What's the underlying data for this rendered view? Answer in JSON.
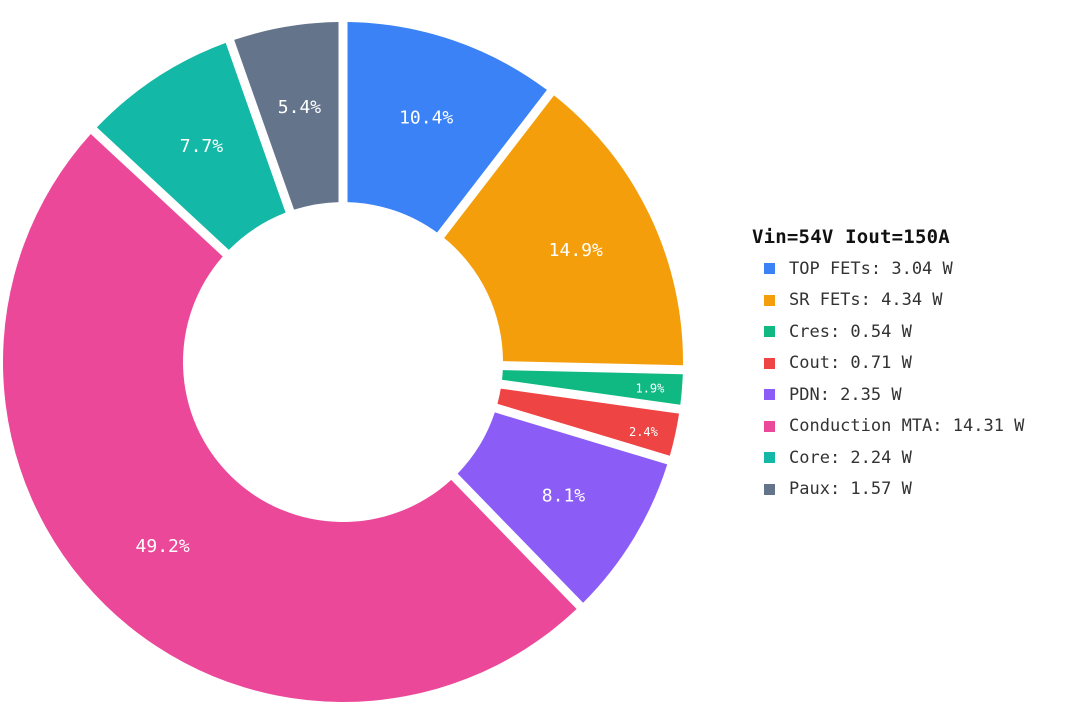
{
  "chart_data": {
    "type": "pie",
    "donut": true,
    "legend_title": "Vin=54V Iout=150A",
    "legend_position": "right",
    "slices": [
      {
        "label": "TOP FETs: 3.04 W",
        "value": 3.04,
        "percent_label": "10.4%",
        "color": "#3b82f6"
      },
      {
        "label": "SR FETs: 4.34 W",
        "value": 4.34,
        "percent_label": "14.9%",
        "color": "#f59e0b"
      },
      {
        "label": "Cres: 0.54 W",
        "value": 0.54,
        "percent_label": "1.9%",
        "color": "#10b981"
      },
      {
        "label": "Cout: 0.71 W",
        "value": 0.71,
        "percent_label": "2.4%",
        "color": "#ef4444"
      },
      {
        "label": "PDN: 2.35 W",
        "value": 2.35,
        "percent_label": "8.1%",
        "color": "#8b5cf6"
      },
      {
        "label": "Conduction MTA: 14.31 W",
        "value": 14.31,
        "percent_label": "49.2%",
        "color": "#ec4899"
      },
      {
        "label": "Core: 2.24 W",
        "value": 2.24,
        "percent_label": "7.7%",
        "color": "#14b8a6"
      },
      {
        "label": "Paux: 1.57 W",
        "value": 1.57,
        "percent_label": "5.4%",
        "color": "#64748b"
      }
    ]
  }
}
